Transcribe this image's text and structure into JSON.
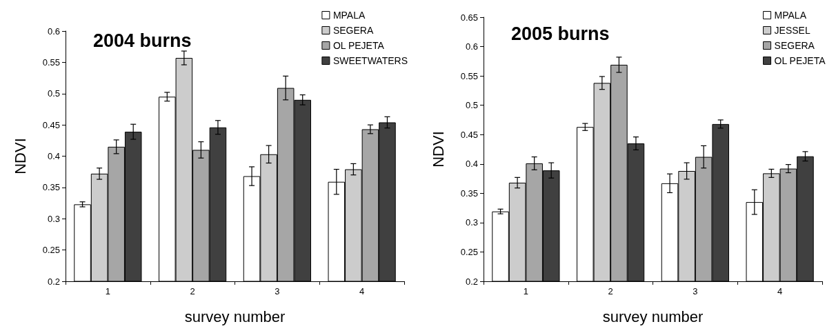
{
  "chart_data": [
    {
      "type": "bar",
      "title": "2004 burns",
      "xlabel": "survey number",
      "ylabel": "NDVI",
      "categories": [
        "1",
        "2",
        "3",
        "4"
      ],
      "ylim": [
        0.2,
        0.6
      ],
      "yticks": [
        0.2,
        0.25,
        0.3,
        0.35,
        0.4,
        0.45,
        0.5,
        0.55,
        0.6
      ],
      "grid": false,
      "legend": "top right",
      "series": [
        {
          "name": "MPALA",
          "color": "#ffffff",
          "values": [
            0.323,
            0.495,
            0.368,
            0.359
          ],
          "errors": [
            0.004,
            0.007,
            0.015,
            0.02
          ]
        },
        {
          "name": "SEGERA",
          "color": "#cccccc",
          "values": [
            0.372,
            0.557,
            0.403,
            0.379
          ],
          "errors": [
            0.009,
            0.011,
            0.014,
            0.009
          ]
        },
        {
          "name": "OL PEJETA",
          "color": "#a6a6a6",
          "values": [
            0.415,
            0.41,
            0.509,
            0.443
          ],
          "errors": [
            0.011,
            0.013,
            0.019,
            0.007
          ]
        },
        {
          "name": "SWEETWATERS",
          "color": "#404040",
          "values": [
            0.439,
            0.446,
            0.49,
            0.454
          ],
          "errors": [
            0.012,
            0.011,
            0.008,
            0.009
          ]
        }
      ]
    },
    {
      "type": "bar",
      "title": "2005 burns",
      "xlabel": "survey number",
      "ylabel": "NDVI",
      "categories": [
        "1",
        "2",
        "3",
        "4"
      ],
      "ylim": [
        0.2,
        0.65
      ],
      "yticks": [
        0.2,
        0.25,
        0.3,
        0.35,
        0.4,
        0.45,
        0.5,
        0.55,
        0.6,
        0.65
      ],
      "grid": false,
      "legend": "top right",
      "series": [
        {
          "name": "MPALA",
          "color": "#ffffff",
          "values": [
            0.319,
            0.463,
            0.367,
            0.335
          ],
          "errors": [
            0.004,
            0.006,
            0.016,
            0.021
          ]
        },
        {
          "name": "JESSEL",
          "color": "#cccccc",
          "values": [
            0.368,
            0.538,
            0.388,
            0.384
          ],
          "errors": [
            0.009,
            0.011,
            0.014,
            0.007
          ]
        },
        {
          "name": "SEGERA",
          "color": "#a6a6a6",
          "values": [
            0.401,
            0.569,
            0.412,
            0.392
          ],
          "errors": [
            0.011,
            0.013,
            0.019,
            0.007
          ]
        },
        {
          "name": "OL PEJETA",
          "color": "#404040",
          "values": [
            0.389,
            0.435,
            0.468,
            0.413
          ],
          "errors": [
            0.013,
            0.011,
            0.007,
            0.008
          ]
        }
      ]
    }
  ]
}
